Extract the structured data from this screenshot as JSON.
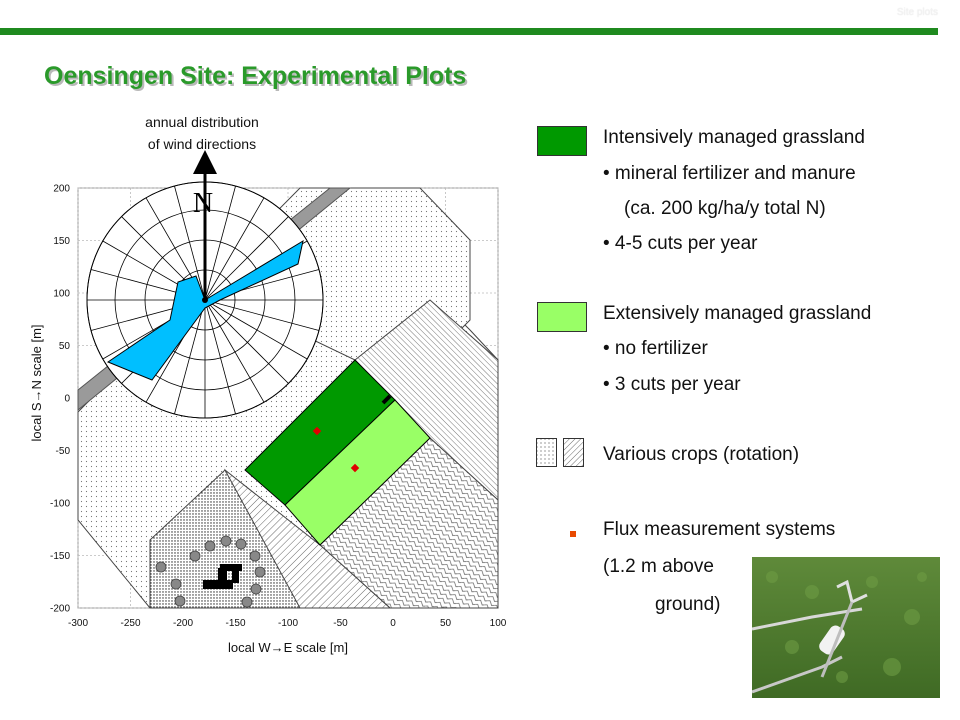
{
  "corner_label": "Site plots",
  "title": "Oensingen Site: Experimental Plots",
  "map": {
    "wind_label_line1": "annual distribution",
    "wind_label_line2": "of wind directions",
    "north_letter": "N",
    "x_axis_label": "local W→E scale [m]",
    "y_axis_label": "local S→N scale [m]",
    "x_ticks": [
      "-300",
      "-250",
      "-200",
      "-150",
      "-100",
      "-50",
      "0",
      "50",
      "100"
    ],
    "y_ticks": [
      "200",
      "150",
      "100",
      "50",
      "0",
      "-50",
      "-100",
      "-150",
      "-200"
    ],
    "x_range": [
      -300,
      100
    ],
    "y_range": [
      -200,
      200
    ],
    "flux_marker_color": "#e00000"
  },
  "legend": {
    "intensive_title": "Intensively managed grassland",
    "intensive_item1": "• mineral fertilizer and manure",
    "intensive_item2": "(ca. 200 kg/ha/y total N)",
    "intensive_item3": "• 4-5 cuts per year",
    "extensive_title": "Extensively managed grassland",
    "extensive_item1": "• no fertilizer",
    "extensive_item2": "• 3 cuts per year",
    "crops_title": "Various crops (rotation)",
    "flux_title": "Flux measurement systems",
    "flux_line2": "(1.2 m above",
    "flux_line3": "ground)"
  },
  "colors": {
    "intensive": "#009900",
    "extensive": "#99ff66",
    "wind": "#00bfff",
    "accent": "#1f8a1f",
    "title": "#2a9a2a"
  }
}
